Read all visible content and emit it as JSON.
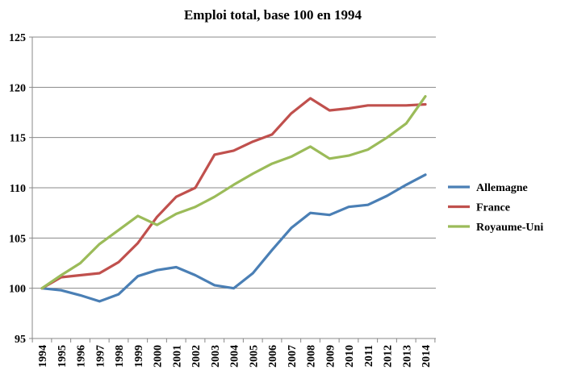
{
  "chart_data": {
    "type": "line",
    "title": "Emploi total, base 100 en 1994",
    "xlabel": "",
    "ylabel": "",
    "x": [
      "1994",
      "1995",
      "1996",
      "1997",
      "1998",
      "1999",
      "2000",
      "2001",
      "2002",
      "2003",
      "2004",
      "2005",
      "2006",
      "2007",
      "2008",
      "2009",
      "2010",
      "2011",
      "2012",
      "2013",
      "2014"
    ],
    "ylim": [
      95,
      125
    ],
    "yticks": [
      95,
      100,
      105,
      110,
      115,
      120,
      125
    ],
    "ytick_labels": [
      "95",
      "100",
      "105",
      "110",
      "115",
      "120",
      "125"
    ],
    "grid": true,
    "legend_position": "right",
    "series": [
      {
        "name": "Allemagne",
        "color": "#4a7fb5",
        "values": [
          100,
          99.8,
          99.3,
          98.7,
          99.4,
          101.2,
          101.8,
          102.1,
          101.3,
          100.3,
          100.0,
          101.5,
          103.8,
          106.0,
          107.5,
          107.3,
          108.1,
          108.3,
          109.2,
          110.3,
          111.3
        ]
      },
      {
        "name": "France",
        "color": "#c0504d",
        "values": [
          100,
          101.1,
          101.3,
          101.5,
          102.6,
          104.5,
          107.1,
          109.1,
          110.0,
          113.3,
          113.7,
          114.6,
          115.3,
          117.4,
          118.9,
          117.7,
          117.9,
          118.2,
          118.2,
          118.2,
          118.3
        ]
      },
      {
        "name": "Royaume-Uni",
        "color": "#9bbb59",
        "values": [
          100,
          101.3,
          102.5,
          104.4,
          105.8,
          107.2,
          106.3,
          107.4,
          108.1,
          109.1,
          110.3,
          111.4,
          112.4,
          113.1,
          114.1,
          112.9,
          113.2,
          113.8,
          115.0,
          116.4,
          119.1
        ]
      }
    ]
  }
}
